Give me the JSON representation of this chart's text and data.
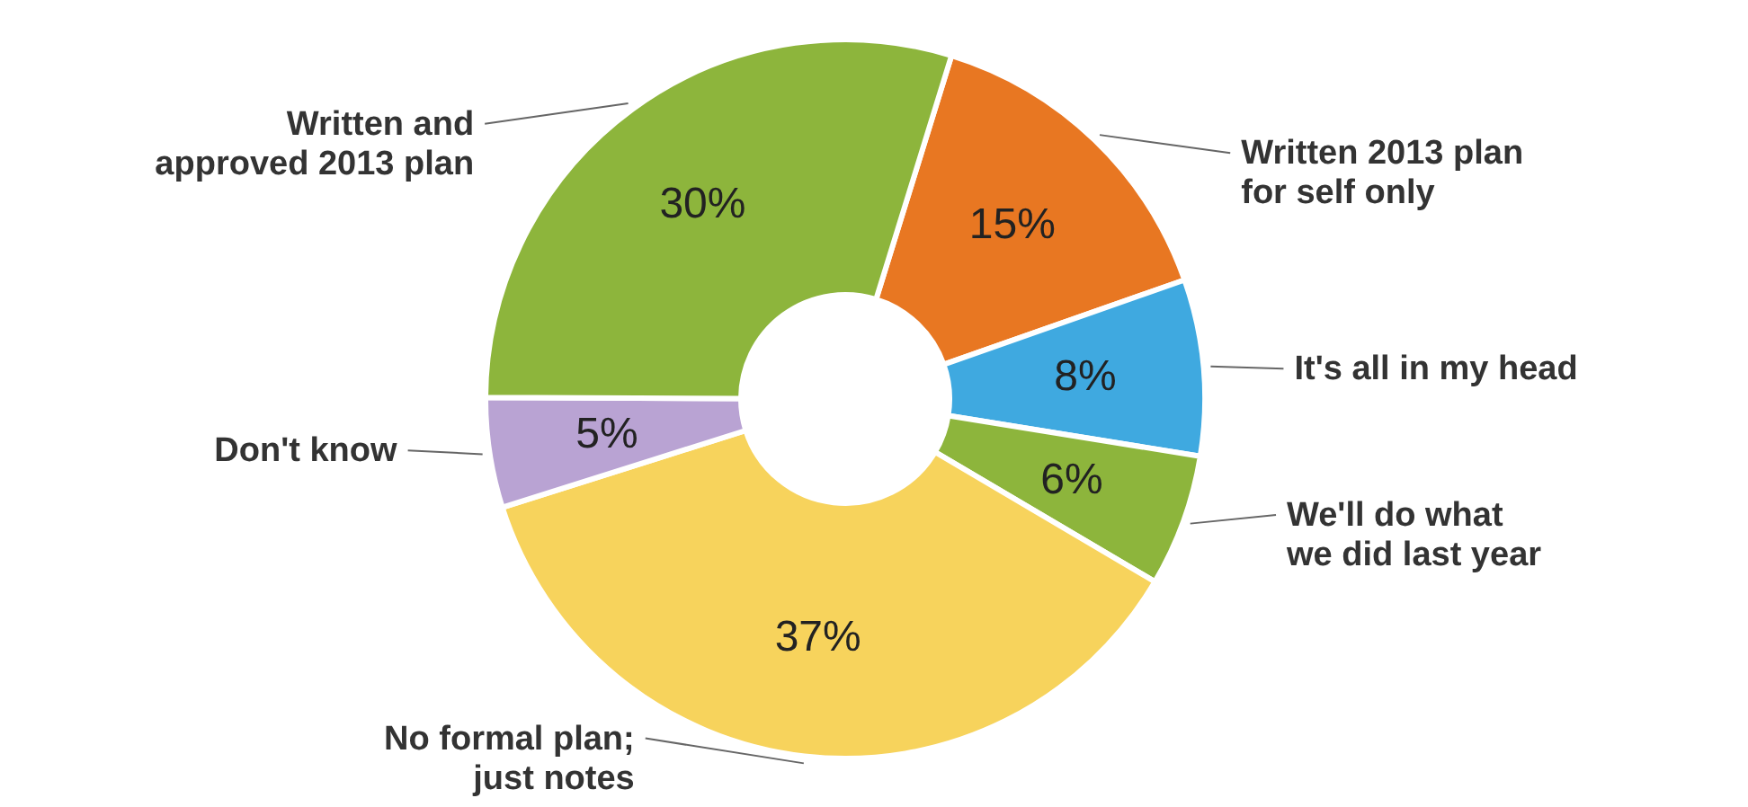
{
  "chart_data": {
    "type": "donut",
    "categories": [
      "Written 2013 plan\nfor self only",
      "It's all in my head",
      "We'll do what\nwe did last year",
      "No formal plan;\njust notes",
      "Don't know",
      "Written and\napproved 2013 plan"
    ],
    "values": [
      15,
      8,
      6,
      37,
      5,
      30
    ],
    "colors": [
      "#e87722",
      "#3fa9e0",
      "#8db53c",
      "#f7d35c",
      "#b9a3d3",
      "#8db53c"
    ],
    "value_labels": [
      "15%",
      "8%",
      "6%",
      "37%",
      "5%",
      "30%"
    ]
  }
}
